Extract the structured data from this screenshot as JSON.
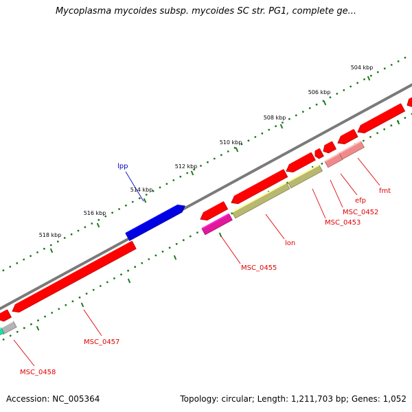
{
  "title": "Mycoplasma mycoides subsp. mycoides SC str. PG1, complete ge...",
  "footer": {
    "accession": "Accession: NC_005364",
    "topology": "Topology: circular; Length: 1,211,703 bp; Genes: 1,052"
  },
  "colors": {
    "backbone": "#7a7a7a",
    "tick": "#1a7a1a",
    "gene_red": "#ff0000",
    "gene_blue": "#0000e0",
    "gene_magenta": "#e0189a",
    "gene_olive": "#b8b870",
    "gene_salmon": "#f08a8a",
    "gene_gray": "#b4b4b4",
    "gene_teal": "#20e0a0",
    "label_red": "#e00000",
    "label_blue": "#0000c0"
  },
  "scale_labels": [
    "504 kbp",
    "506 kbp",
    "508 kbp",
    "510 kbp",
    "512 kbp",
    "514 kbp",
    "516 kbp",
    "518 kbp"
  ],
  "genes": [
    {
      "id": "lpp",
      "label": "lpp",
      "color": "gene_blue",
      "label_color": "label_blue"
    },
    {
      "id": "fmt",
      "label": "fmt",
      "color": "gene_salmon",
      "label_color": "label_red"
    },
    {
      "id": "efp",
      "label": "efp",
      "color": "gene_salmon",
      "label_color": "label_red"
    },
    {
      "id": "MSC_0452",
      "label": "MSC_0452",
      "color": "gene_red",
      "label_color": "label_red"
    },
    {
      "id": "MSC_0453",
      "label": "MSC_0453",
      "color": "gene_olive",
      "label_color": "label_red"
    },
    {
      "id": "lon",
      "label": "lon",
      "color": "gene_olive",
      "label_color": "label_red"
    },
    {
      "id": "MSC_0455",
      "label": "MSC_0455",
      "color": "gene_magenta",
      "label_color": "label_red"
    },
    {
      "id": "MSC_0457",
      "label": "MSC_0457",
      "color": "gene_red",
      "label_color": "label_red"
    },
    {
      "id": "MSC_0458",
      "label": "MSC_0458",
      "color": "gene_gray",
      "label_color": "label_red"
    }
  ]
}
